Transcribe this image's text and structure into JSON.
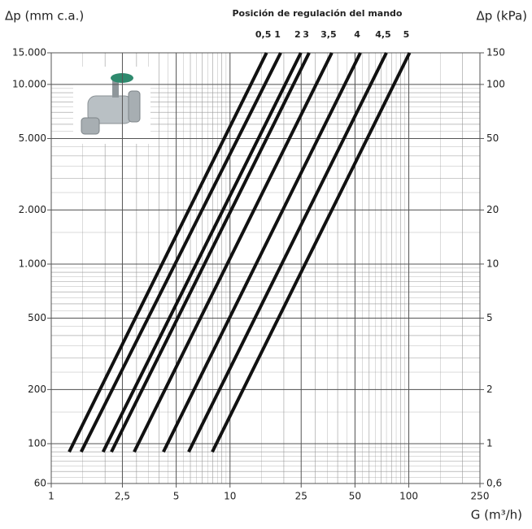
{
  "chart_data": {
    "type": "line",
    "log_x": true,
    "log_y": true,
    "grid": true,
    "y_label": "Δp (mm c.a.)",
    "y2_label": "Δp (kPa)",
    "x_label": "G (m³/h)",
    "legend_title": "Posición de regulación del mando",
    "xlim": [
      1,
      250
    ],
    "xticks": [
      1,
      {
        "value": 2.5,
        "label": "2,5"
      },
      5,
      10,
      25,
      50,
      100,
      250
    ],
    "ylim": [
      60,
      15000
    ],
    "yticks": [
      60,
      100,
      200,
      500,
      {
        "value": 1000,
        "label": "1.000"
      },
      {
        "value": 2000,
        "label": "2.000"
      },
      {
        "value": 5000,
        "label": "5.000"
      },
      {
        "value": 10000,
        "label": "10.000"
      },
      {
        "value": 15000,
        "label": "15.000"
      }
    ],
    "y2lim": [
      0.6,
      150
    ],
    "y2ticks": [
      {
        "value": 0.6,
        "label": "0,6"
      },
      1,
      2,
      5,
      10,
      20,
      50,
      100,
      150
    ],
    "series": [
      {
        "name": "0,5",
        "color": "#111111",
        "x": [
          1.26,
          16.0
        ],
        "values": [
          90,
          15000
        ]
      },
      {
        "name": "1",
        "color": "#111111",
        "x": [
          1.47,
          19.2
        ],
        "values": [
          90,
          15000
        ]
      },
      {
        "name": "2",
        "color": "#111111",
        "x": [
          1.95,
          24.9
        ],
        "values": [
          90,
          15000
        ]
      },
      {
        "name": "3",
        "color": "#111111",
        "x": [
          2.17,
          27.7
        ],
        "values": [
          90,
          15000
        ]
      },
      {
        "name": "3,5",
        "color": "#111111",
        "x": [
          2.91,
          37.1
        ],
        "values": [
          90,
          15000
        ]
      },
      {
        "name": "4",
        "color": "#111111",
        "x": [
          4.24,
          53.6
        ],
        "values": [
          90,
          15000
        ]
      },
      {
        "name": "4,5",
        "color": "#111111",
        "x": [
          5.87,
          74.9
        ],
        "values": [
          90,
          15000
        ]
      },
      {
        "name": "5",
        "color": "#111111",
        "x": [
          7.96,
          101
        ],
        "values": [
          90,
          15000
        ]
      }
    ]
  }
}
